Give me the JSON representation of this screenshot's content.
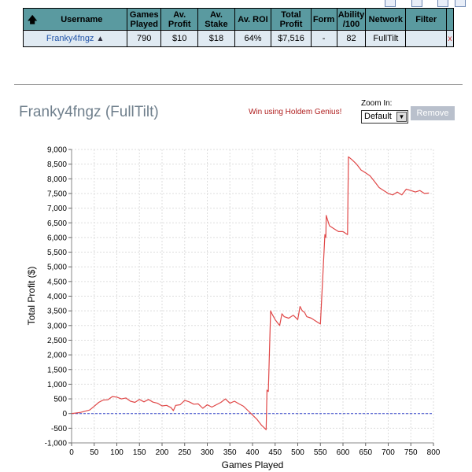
{
  "table": {
    "headers": [
      "Username",
      "Games Played",
      "Av. Profit",
      "Av. Stake",
      "Av. ROI",
      "Total Profit",
      "Form",
      "Ability /100",
      "Network",
      "Filter"
    ],
    "row": {
      "username": "Franky4fngz",
      "games_played": "790",
      "av_profit": "$10",
      "av_stake": "$18",
      "av_roi": "64%",
      "total_profit": "$7,516",
      "form": "-",
      "ability": "82",
      "network": "FullTilt",
      "filter": "",
      "remove": "x"
    }
  },
  "header": {
    "player_title": "Franky4fngz (FullTilt)",
    "promo": "Win using Holdem Genius!",
    "zoom_label": "Zoom In:",
    "zoom_value": "Default",
    "remove_label": "Remove"
  },
  "colors": {
    "header_bg": "#5a9aa0",
    "row_bg": "#e0eaf2",
    "line": "#e04848",
    "zero_line": "#3344cc"
  },
  "chart_data": {
    "type": "line",
    "xlabel": "Games Played",
    "ylabel": "Total Profit ($)",
    "xlim": [
      0,
      800
    ],
    "ylim": [
      -1000,
      9000
    ],
    "xticks": [
      0,
      50,
      100,
      150,
      200,
      250,
      300,
      350,
      400,
      450,
      500,
      550,
      600,
      650,
      700,
      750,
      800
    ],
    "yticks": [
      -1000,
      -500,
      0,
      500,
      1000,
      1500,
      2000,
      2500,
      3000,
      3500,
      4000,
      4500,
      5000,
      5500,
      6000,
      6500,
      7000,
      7500,
      8000,
      8500,
      9000
    ],
    "grid": true,
    "series": [
      {
        "x": [
          0,
          10,
          20,
          30,
          40,
          50,
          60,
          70,
          80,
          90,
          100,
          110,
          120,
          130,
          140,
          150,
          160,
          170,
          180,
          190,
          200,
          210,
          220,
          225,
          230,
          240,
          250,
          260,
          270,
          280,
          290,
          300,
          310,
          320,
          330,
          340,
          350,
          360,
          370,
          380,
          390,
          400,
          410,
          420,
          430,
          432,
          435,
          440,
          443,
          450,
          455,
          460,
          465,
          470,
          480,
          490,
          500,
          505,
          510,
          515,
          520,
          530,
          540,
          550,
          560,
          562,
          563,
          566,
          570,
          580,
          590,
          600,
          610,
          612,
          616,
          620,
          630,
          640,
          650,
          660,
          670,
          680,
          690,
          700,
          710,
          720,
          730,
          740,
          750,
          760,
          770,
          780,
          790
        ],
        "y": [
          0,
          20,
          40,
          80,
          120,
          250,
          380,
          460,
          470,
          580,
          560,
          500,
          530,
          420,
          380,
          480,
          400,
          480,
          390,
          350,
          260,
          280,
          200,
          100,
          280,
          300,
          450,
          400,
          320,
          330,
          180,
          300,
          220,
          300,
          380,
          500,
          350,
          420,
          330,
          250,
          100,
          -50,
          -200,
          -400,
          -550,
          800,
          750,
          3500,
          3400,
          3200,
          3100,
          3000,
          3400,
          3300,
          3250,
          3350,
          3200,
          3650,
          3500,
          3450,
          3300,
          3250,
          3150,
          3050,
          6100,
          6000,
          6750,
          6600,
          6400,
          6300,
          6200,
          6200,
          6100,
          8750,
          8700,
          8650,
          8500,
          8300,
          8200,
          8100,
          7900,
          7700,
          7600,
          7500,
          7450,
          7550,
          7450,
          7650,
          7600,
          7550,
          7600,
          7500,
          7516
        ]
      }
    ]
  }
}
